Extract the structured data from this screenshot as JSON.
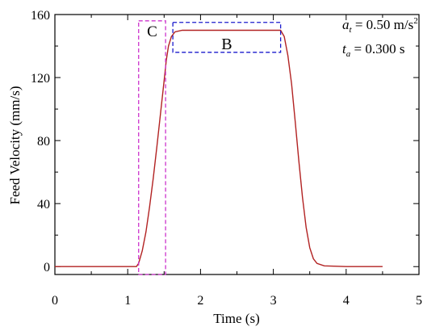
{
  "chart_data": {
    "type": "line",
    "xlabel": "Time (s)",
    "ylabel": "Feed Velocity (mm/s)",
    "xlim": [
      0,
      5
    ],
    "ylim": [
      -5,
      160
    ],
    "x_ticks": [
      0,
      1,
      2,
      3,
      4,
      5
    ],
    "y_ticks": [
      0,
      40,
      80,
      120,
      160
    ],
    "grid": false,
    "series": [
      {
        "color": "#b22222",
        "points": [
          [
            0.0,
            0
          ],
          [
            1.12,
            0
          ],
          [
            1.15,
            2
          ],
          [
            1.2,
            10
          ],
          [
            1.25,
            22
          ],
          [
            1.3,
            38
          ],
          [
            1.35,
            56
          ],
          [
            1.4,
            76
          ],
          [
            1.45,
            97
          ],
          [
            1.5,
            118
          ],
          [
            1.53,
            131
          ],
          [
            1.56,
            140
          ],
          [
            1.6,
            146
          ],
          [
            1.65,
            149
          ],
          [
            1.75,
            150
          ],
          [
            2.0,
            150
          ],
          [
            2.5,
            150
          ],
          [
            3.0,
            150
          ],
          [
            3.1,
            150
          ],
          [
            3.15,
            146
          ],
          [
            3.2,
            134
          ],
          [
            3.25,
            116
          ],
          [
            3.3,
            92
          ],
          [
            3.35,
            67
          ],
          [
            3.4,
            44
          ],
          [
            3.45,
            25
          ],
          [
            3.5,
            12
          ],
          [
            3.55,
            5
          ],
          [
            3.6,
            2
          ],
          [
            3.7,
            0.5
          ],
          [
            4.0,
            0
          ],
          [
            4.5,
            0
          ]
        ]
      }
    ],
    "annotations": {
      "accel_prefix": "a",
      "accel_sub": "t",
      "accel_value": " = 0.50 m/s",
      "accel_sup": "2",
      "time_prefix": "t",
      "time_sub": "a",
      "time_value": " = 0.300 s",
      "region_c": {
        "label": "C",
        "color": "#cc33cc",
        "x": [
          1.15,
          1.52
        ],
        "y": [
          -5,
          156
        ]
      },
      "region_b": {
        "label": "B",
        "color": "#1a1acc",
        "x": [
          1.62,
          3.1
        ],
        "y": [
          136,
          155
        ]
      }
    }
  }
}
